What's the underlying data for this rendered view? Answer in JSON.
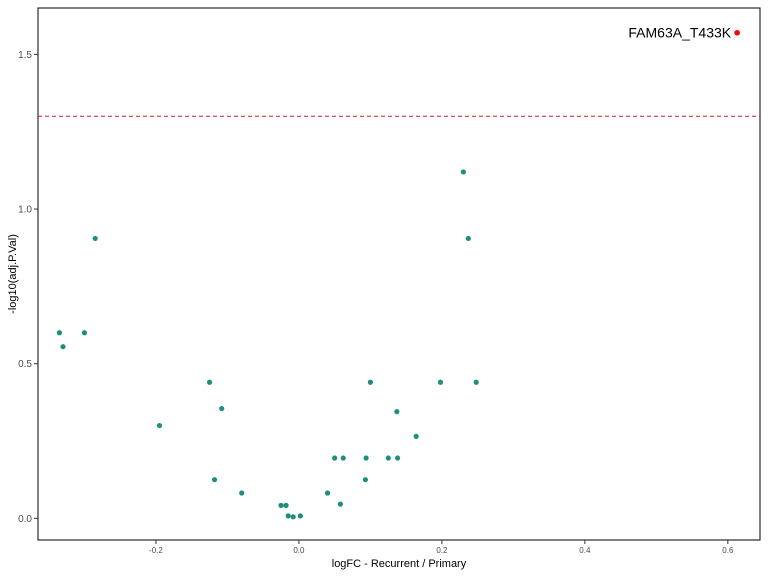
{
  "chart_data": {
    "type": "scatter",
    "xlabel": "logFC - Recurrent / Primary",
    "ylabel": "-log10(adj.P.Val)",
    "xlim": [
      -0.365,
      0.645
    ],
    "ylim": [
      -0.07,
      1.65
    ],
    "x_ticks": [
      -0.2,
      0.0,
      0.2,
      0.4,
      0.6
    ],
    "x_tick_labels": [
      "-0.2",
      "0.0",
      "0.2",
      "0.4",
      "0.6"
    ],
    "y_ticks": [
      0.0,
      0.5,
      1.0,
      1.5
    ],
    "y_tick_labels": [
      "0.0",
      "0.5",
      "1.0",
      "1.5"
    ],
    "grid": false,
    "threshold_line": {
      "y": 1.3,
      "color": "#c0272d",
      "style": "dashed"
    },
    "point_color": "#1f8f7c",
    "highlight_color": "#ff0000",
    "points": [
      {
        "x": -0.335,
        "y": 0.6
      },
      {
        "x": -0.33,
        "y": 0.555
      },
      {
        "x": -0.3,
        "y": 0.6
      },
      {
        "x": -0.285,
        "y": 0.905
      },
      {
        "x": -0.195,
        "y": 0.3
      },
      {
        "x": -0.125,
        "y": 0.44
      },
      {
        "x": -0.118,
        "y": 0.125
      },
      {
        "x": -0.108,
        "y": 0.355
      },
      {
        "x": -0.08,
        "y": 0.082
      },
      {
        "x": -0.025,
        "y": 0.042
      },
      {
        "x": -0.018,
        "y": 0.042
      },
      {
        "x": -0.015,
        "y": 0.008
      },
      {
        "x": -0.008,
        "y": 0.005
      },
      {
        "x": 0.002,
        "y": 0.008
      },
      {
        "x": 0.04,
        "y": 0.082
      },
      {
        "x": 0.05,
        "y": 0.195
      },
      {
        "x": 0.058,
        "y": 0.046
      },
      {
        "x": 0.062,
        "y": 0.195
      },
      {
        "x": 0.093,
        "y": 0.125
      },
      {
        "x": 0.094,
        "y": 0.195
      },
      {
        "x": 0.1,
        "y": 0.44
      },
      {
        "x": 0.125,
        "y": 0.195
      },
      {
        "x": 0.137,
        "y": 0.345
      },
      {
        "x": 0.138,
        "y": 0.195
      },
      {
        "x": 0.164,
        "y": 0.265
      },
      {
        "x": 0.198,
        "y": 0.44
      },
      {
        "x": 0.23,
        "y": 1.12
      },
      {
        "x": 0.237,
        "y": 0.905
      },
      {
        "x": 0.248,
        "y": 0.44
      }
    ],
    "highlighted": [
      {
        "label": "FAM63A_T433K",
        "x": 0.613,
        "y": 1.57
      }
    ]
  }
}
